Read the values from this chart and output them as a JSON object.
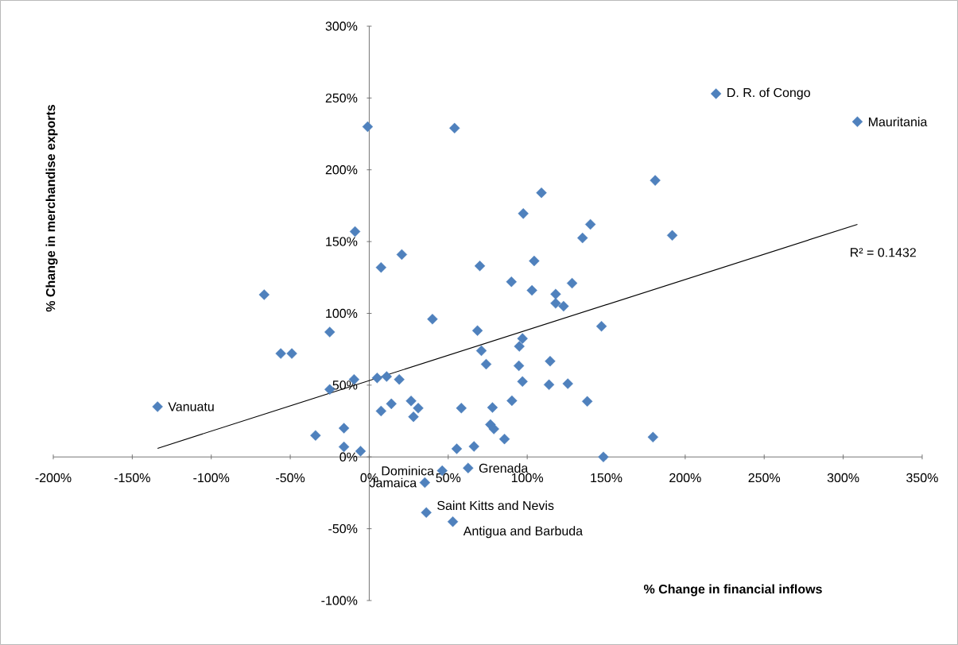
{
  "chart_data": {
    "type": "scatter",
    "xlabel": "% Change in financial inflows",
    "ylabel": "% Change in merchandise exports",
    "xlim": [
      -200,
      350
    ],
    "ylim": [
      -100,
      300
    ],
    "xticks": [
      {
        "value": -200,
        "label": "-200%"
      },
      {
        "value": -150,
        "label": "-150%"
      },
      {
        "value": -100,
        "label": "-100%"
      },
      {
        "value": -50,
        "label": "-50%"
      },
      {
        "value": 0,
        "label": "0%"
      },
      {
        "value": 50,
        "label": "50%"
      },
      {
        "value": 100,
        "label": "100%"
      },
      {
        "value": 150,
        "label": "150%"
      },
      {
        "value": 200,
        "label": "200%"
      },
      {
        "value": 250,
        "label": "250%"
      },
      {
        "value": 300,
        "label": "300%"
      },
      {
        "value": 350,
        "label": "350%"
      }
    ],
    "yticks": [
      {
        "value": -100,
        "label": "-100%"
      },
      {
        "value": -50,
        "label": "-50%"
      },
      {
        "value": 0,
        "label": "0%"
      },
      {
        "value": 50,
        "label": "50%"
      },
      {
        "value": 100,
        "label": "100%"
      },
      {
        "value": 150,
        "label": "150%"
      },
      {
        "value": 200,
        "label": "200%"
      },
      {
        "value": 250,
        "label": "250%"
      },
      {
        "value": 300,
        "label": "300%"
      }
    ],
    "grid": false,
    "series": [
      {
        "color": "#4f81bd",
        "marker": "diamond",
        "x": [
          -134,
          219.5,
          309,
          62.6,
          46.2,
          35.2,
          36.1,
          52.9,
          -66.5,
          -56,
          -49,
          -25,
          -25,
          -34,
          -16,
          -16,
          -5.5,
          -9.6,
          -9,
          -1,
          7.5,
          20.6,
          5,
          11,
          19,
          7.5,
          14,
          26.5,
          31,
          28,
          40,
          54,
          70,
          68.5,
          90,
          97.5,
          103,
          104.4,
          109,
          118,
          118,
          123,
          128.4,
          135,
          140,
          147,
          97,
          95,
          71,
          74,
          94.7,
          97,
          114.5,
          113.8,
          125.7,
          138,
          90.3,
          58.3,
          78,
          76.7,
          78.9,
          85.6,
          55.4,
          66.3,
          179.6,
          148.2,
          181,
          191.8
        ],
        "values": [
          35,
          253,
          233.5,
          -7.7,
          -9.6,
          -17.9,
          -38.7,
          -45.1,
          113,
          72,
          72,
          87,
          47,
          15,
          20,
          7,
          4,
          54,
          157,
          230,
          132,
          141,
          55,
          56,
          54,
          32,
          37,
          39,
          34,
          28,
          96,
          229,
          133,
          88,
          122,
          169.5,
          116,
          136.5,
          184,
          113.4,
          107,
          105,
          121,
          152.5,
          162,
          91,
          82.5,
          77,
          74,
          64.6,
          63.5,
          52.5,
          66.7,
          50.3,
          51,
          38.7,
          39.2,
          34,
          34.4,
          22.6,
          19.5,
          12.5,
          5.7,
          7.3,
          13.8,
          0,
          192.6,
          154.3
        ]
      },
      {
        "type": "line",
        "color": "#000000",
        "marker": "none",
        "line_style": "solid",
        "x": [
          -134,
          309
        ],
        "values": [
          6,
          162
        ]
      }
    ],
    "annotations": [
      {
        "text": "Vanuatu",
        "x": -134,
        "y": 35
      },
      {
        "text": "D. R. of Congo",
        "x": 219.5,
        "y": 253
      },
      {
        "text": "Mauritania",
        "x": 309,
        "y": 233.5
      },
      {
        "text": "Grenada",
        "x": 62.6,
        "y": -7.7
      },
      {
        "text": "Dominica",
        "x": 46.2,
        "y": -9.6
      },
      {
        "text": "Jamaica",
        "x": 35.2,
        "y": -17.9
      },
      {
        "text": "Saint Kitts and Nevis",
        "x": 36.1,
        "y": -38.7
      },
      {
        "text": "Antigua and Barbuda",
        "x": 52.9,
        "y": -45.1
      },
      "R² = 0.1432"
    ]
  }
}
